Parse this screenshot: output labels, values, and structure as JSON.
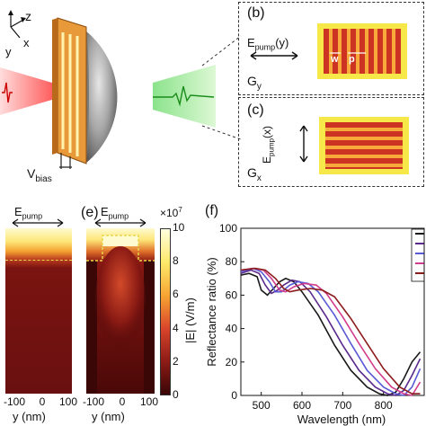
{
  "panel_b": {
    "label": "(b)",
    "pump": "E",
    "pump_sub": "pump",
    "pump_dir": "(y)",
    "w": "w",
    "p": "p",
    "g": "G",
    "g_sub": "y"
  },
  "panel_c": {
    "label": "(c)",
    "pump": "E",
    "pump_sub": "pump",
    "pump_dir": "(x)",
    "g": "G",
    "g_sub": "x"
  },
  "panel_a": {
    "axis_z": "z",
    "axis_x": "x",
    "axis_y": "y",
    "vbias": "V",
    "vbias_sub": "bias"
  },
  "panel_d": {
    "pump": "E",
    "pump_sub": "pump",
    "x_ticks": [
      "-100",
      "0",
      "100"
    ],
    "xlabel": "y (nm)"
  },
  "panel_e": {
    "label": "(e)",
    "pump": "E",
    "pump_sub": "pump",
    "x_ticks": [
      "-100",
      "0",
      "100"
    ],
    "xlabel": "y (nm)"
  },
  "colorbar": {
    "exponent": "×10",
    "exponent_sup": "7",
    "ticks": [
      "10",
      "8",
      "6",
      "4",
      "2",
      "0"
    ],
    "label": "|E| (V/m)",
    "colors": [
      "#ffffe0",
      "#fde96a",
      "#f7a533",
      "#d9452a",
      "#8c1b17",
      "#3a0606"
    ]
  },
  "panel_f": {
    "label": "(f)"
  },
  "chart_data": {
    "type": "line",
    "title": "",
    "xlabel": "Wavelength (nm)",
    "ylabel": "Reflectance ratio (%)",
    "xlim": [
      450,
      900
    ],
    "ylim": [
      0,
      100
    ],
    "x_ticks": [
      500,
      600,
      700,
      800
    ],
    "y_ticks": [
      0,
      20,
      40,
      60,
      80,
      100
    ],
    "grid": false,
    "legend": "top-right",
    "series": [
      {
        "color": "#1a1a1a",
        "points": [
          [
            450,
            72
          ],
          [
            470,
            73
          ],
          [
            490,
            71
          ],
          [
            500,
            63
          ],
          [
            515,
            60
          ],
          [
            530,
            64
          ],
          [
            545,
            68
          ],
          [
            560,
            70
          ],
          [
            580,
            68
          ],
          [
            600,
            62
          ],
          [
            640,
            48
          ],
          [
            680,
            30
          ],
          [
            720,
            15
          ],
          [
            760,
            5
          ],
          [
            790,
            1
          ],
          [
            810,
            0
          ],
          [
            830,
            2
          ],
          [
            850,
            10
          ],
          [
            870,
            20
          ],
          [
            890,
            26
          ]
        ]
      },
      {
        "color": "#5b2a8c",
        "points": [
          [
            450,
            73
          ],
          [
            475,
            75
          ],
          [
            495,
            73
          ],
          [
            510,
            66
          ],
          [
            525,
            61
          ],
          [
            540,
            63
          ],
          [
            555,
            66
          ],
          [
            575,
            69
          ],
          [
            595,
            68
          ],
          [
            620,
            62
          ],
          [
            660,
            47
          ],
          [
            700,
            30
          ],
          [
            740,
            15
          ],
          [
            780,
            5
          ],
          [
            810,
            1
          ],
          [
            830,
            0
          ],
          [
            850,
            3
          ],
          [
            870,
            12
          ],
          [
            890,
            22
          ]
        ]
      },
      {
        "color": "#5a5ad6",
        "points": [
          [
            450,
            74
          ],
          [
            480,
            76
          ],
          [
            500,
            74
          ],
          [
            520,
            68
          ],
          [
            535,
            62
          ],
          [
            550,
            62
          ],
          [
            570,
            66
          ],
          [
            590,
            68
          ],
          [
            615,
            67
          ],
          [
            640,
            62
          ],
          [
            680,
            48
          ],
          [
            720,
            31
          ],
          [
            760,
            15
          ],
          [
            800,
            5
          ],
          [
            830,
            1
          ],
          [
            850,
            0
          ],
          [
            870,
            5
          ],
          [
            890,
            16
          ]
        ]
      },
      {
        "color": "#d23c8c",
        "points": [
          [
            450,
            75
          ],
          [
            480,
            76
          ],
          [
            505,
            75
          ],
          [
            525,
            70
          ],
          [
            545,
            63
          ],
          [
            560,
            62
          ],
          [
            580,
            65
          ],
          [
            605,
            67
          ],
          [
            635,
            66
          ],
          [
            660,
            61
          ],
          [
            700,
            47
          ],
          [
            740,
            31
          ],
          [
            780,
            16
          ],
          [
            820,
            5
          ],
          [
            850,
            1
          ],
          [
            870,
            0
          ],
          [
            890,
            8
          ]
        ]
      },
      {
        "color": "#8c1b1b",
        "points": [
          [
            450,
            75
          ],
          [
            485,
            76
          ],
          [
            510,
            75
          ],
          [
            535,
            70
          ],
          [
            555,
            64
          ],
          [
            570,
            62
          ],
          [
            590,
            63
          ],
          [
            620,
            64
          ],
          [
            650,
            63
          ],
          [
            680,
            59
          ],
          [
            720,
            46
          ],
          [
            760,
            31
          ],
          [
            800,
            16
          ],
          [
            840,
            5
          ],
          [
            870,
            1
          ],
          [
            890,
            1
          ]
        ]
      }
    ]
  }
}
